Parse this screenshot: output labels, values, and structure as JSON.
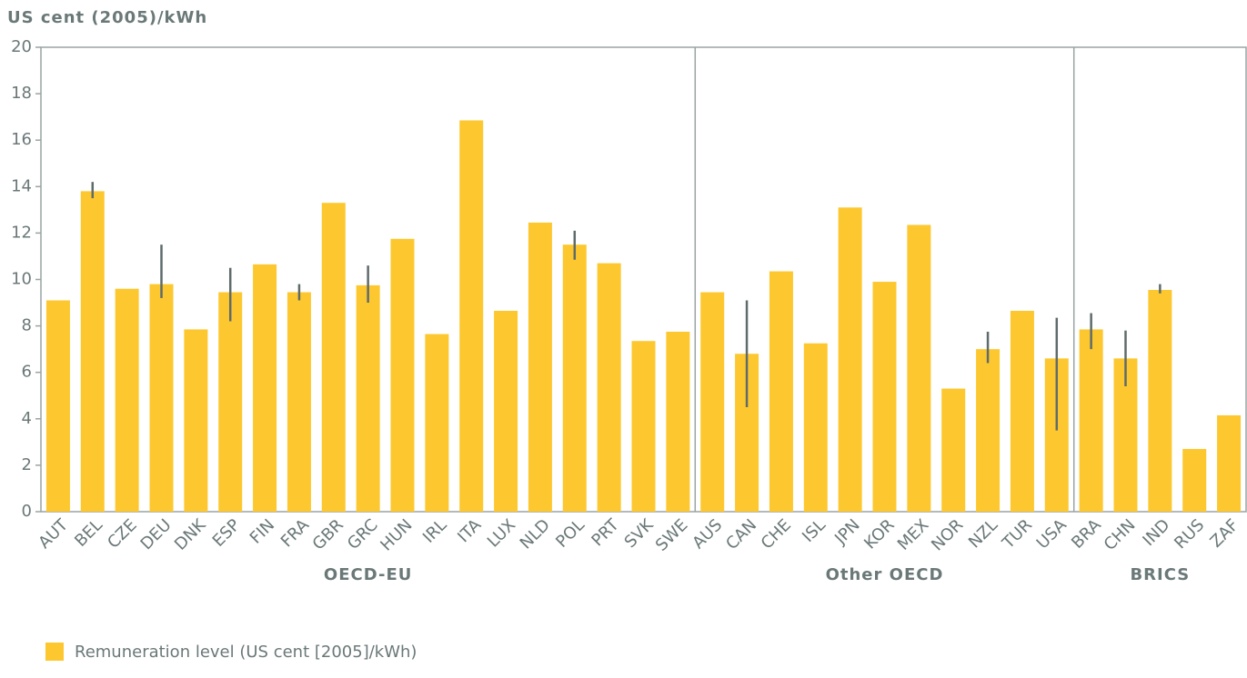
{
  "chart_data": {
    "type": "bar",
    "title": "US cent (2005)/kWh",
    "categories": [
      "AUT",
      "BEL",
      "CZE",
      "DEU",
      "DNK",
      "ESP",
      "FIN",
      "FRA",
      "GBR",
      "GRC",
      "HUN",
      "IRL",
      "ITA",
      "LUX",
      "NLD",
      "POL",
      "PRT",
      "SVK",
      "SWE",
      "AUS",
      "CAN",
      "CHE",
      "ISL",
      "JPN",
      "KOR",
      "MEX",
      "NOR",
      "NZL",
      "TUR",
      "USA",
      "BRA",
      "CHN",
      "IND",
      "RUS",
      "ZAF"
    ],
    "groups": [
      {
        "name": "OECD-EU",
        "count": 19
      },
      {
        "name": "Other OECD",
        "count": 11
      },
      {
        "name": "BRICS",
        "count": 5
      }
    ],
    "series": [
      {
        "name": "Remuneration level (US cent [2005]/kWh)",
        "color": "#fdc82f",
        "values": [
          9.1,
          13.8,
          9.6,
          9.8,
          7.85,
          9.45,
          10.65,
          9.45,
          13.3,
          9.75,
          11.75,
          7.65,
          16.85,
          8.65,
          12.45,
          11.5,
          10.7,
          7.35,
          7.75,
          9.45,
          6.8,
          10.35,
          7.25,
          13.1,
          9.9,
          12.35,
          5.3,
          7.0,
          8.65,
          6.6,
          7.85,
          6.6,
          9.55,
          2.7,
          4.15
        ]
      }
    ],
    "error_range": [
      null,
      [
        13.5,
        14.2
      ],
      null,
      [
        9.2,
        11.5
      ],
      null,
      [
        8.2,
        10.5
      ],
      null,
      [
        9.1,
        9.8
      ],
      null,
      [
        9.0,
        10.6
      ],
      null,
      null,
      null,
      null,
      null,
      [
        10.85,
        12.1
      ],
      null,
      null,
      null,
      null,
      [
        4.5,
        9.1
      ],
      null,
      null,
      null,
      null,
      null,
      null,
      [
        6.4,
        7.75
      ],
      null,
      [
        3.5,
        8.35
      ],
      [
        7.0,
        8.55
      ],
      [
        5.4,
        7.8
      ],
      [
        9.4,
        9.8
      ],
      null,
      null
    ],
    "error_color": "#5f6b6b",
    "ylim": [
      0,
      20
    ],
    "yticks": [
      0,
      2,
      4,
      6,
      8,
      10,
      12,
      14,
      16,
      18,
      20
    ]
  }
}
